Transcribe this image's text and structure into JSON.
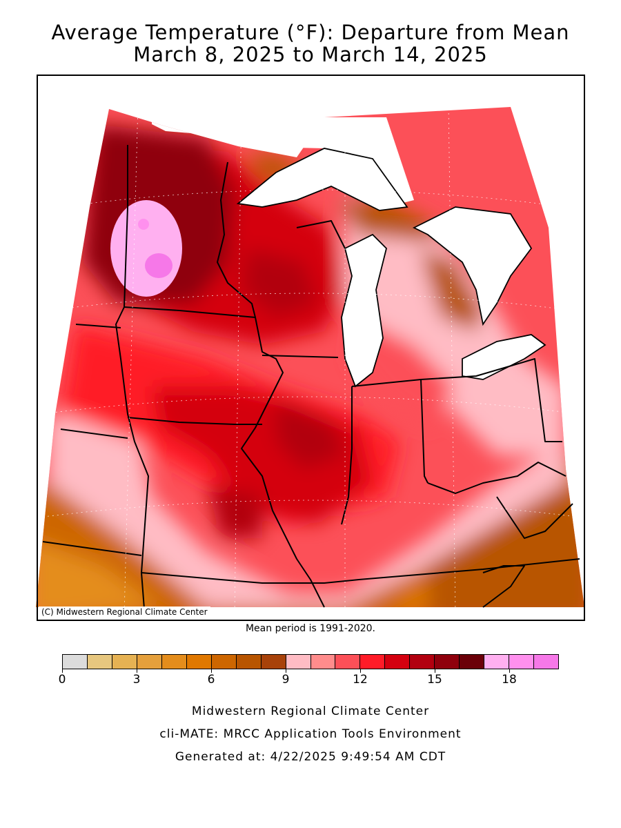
{
  "title": {
    "line1": "Average Temperature (°F): Departure from Mean",
    "line2": "March 8, 2025 to March 14, 2025"
  },
  "map": {
    "copyright": "(C) Midwestern Regional Climate Center",
    "mean_period": "Mean period is 1991-2020.",
    "regions": [
      {
        "name": "northwest-minnesota-anomaly",
        "value_range": "17-19",
        "color": "#f7a8ef"
      },
      {
        "name": "central-belt-anomaly",
        "value_range": "12-16",
        "color": "#c8101f"
      },
      {
        "name": "southern-ohio-valley-anomaly",
        "value_range": "3-8",
        "color": "#c8600a"
      }
    ]
  },
  "legend": {
    "colors": [
      "#dcdcdc",
      "#e7c77f",
      "#e6b253",
      "#e5a03c",
      "#e48d1c",
      "#e07800",
      "#cd6600",
      "#b85500",
      "#a8420a",
      "#ffbcc4",
      "#ff8c8c",
      "#fc5058",
      "#ff1c28",
      "#d4000f",
      "#b2000f",
      "#8f000c",
      "#6b0008",
      "#ffb0f0",
      "#ff90ee",
      "#f678e8"
    ],
    "tick_labels": [
      "0",
      "3",
      "6",
      "9",
      "12",
      "15",
      "18"
    ]
  },
  "footer": {
    "line1": "Midwestern Regional Climate Center",
    "line2": "cli-MATE: MRCC Application Tools Environment",
    "line3": "Generated at: 4/22/2025 9:49:54 AM CDT"
  }
}
